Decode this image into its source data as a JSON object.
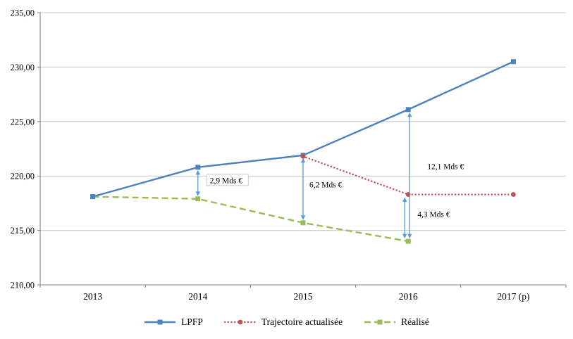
{
  "chart_data": {
    "type": "line",
    "title": "",
    "xlabel": "",
    "ylabel": "",
    "categories": [
      "2013",
      "2014",
      "2015",
      "2016",
      "2017 (p)"
    ],
    "ylim": [
      210,
      235
    ],
    "grid": true,
    "legend_position": "bottom",
    "yticks": [
      {
        "value": 210,
        "label": "210,00"
      },
      {
        "value": 215,
        "label": "215,00"
      },
      {
        "value": 220,
        "label": "220,00"
      },
      {
        "value": 225,
        "label": "225,00"
      },
      {
        "value": 230,
        "label": "230,00"
      },
      {
        "value": 235,
        "label": "235,00"
      }
    ],
    "series": [
      {
        "name": "LPFP",
        "color": "#4f81bd",
        "marker": "square",
        "dash": null,
        "linecap": null,
        "width": 2.4,
        "values": [
          218.1,
          220.8,
          221.9,
          226.1,
          230.5
        ]
      },
      {
        "name": "Trajectoire actualisée",
        "color": "#c0504d",
        "marker": "circle",
        "dash": "0.1 4.6",
        "linecap": "round",
        "width": 2.4,
        "values": [
          null,
          null,
          221.8,
          218.3,
          218.3
        ]
      },
      {
        "name": "Réalisé",
        "color": "#9bbb59",
        "marker": "square",
        "dash": "9 5",
        "linecap": null,
        "width": 2.4,
        "values": [
          218.1,
          217.9,
          215.7,
          214.0,
          null
        ]
      }
    ],
    "draw_order": [
      2,
      0,
      1
    ],
    "annotations": [
      {
        "x": "2014",
        "from": 220.8,
        "to": 217.9,
        "label": "2,9 Mds €",
        "label_value": 219.6,
        "label_dx": 17,
        "offset": 0,
        "boxed": true
      },
      {
        "x": "2015",
        "from": 221.9,
        "to": 215.7,
        "label": "6,2 Mds €",
        "label_value": 219.2,
        "label_dx": 9,
        "offset": 0,
        "boxed": false
      },
      {
        "x": "2016",
        "from": 226.1,
        "to": 214.0,
        "label": "12,1 Mds €",
        "label_value": 220.9,
        "label_dx": 27,
        "offset": 2,
        "boxed": false
      },
      {
        "x": "2016",
        "from": 218.3,
        "to": 214.0,
        "label": "4,3 Mds €",
        "label_value": 216.5,
        "label_dx": 13,
        "offset": -5,
        "boxed": false
      }
    ],
    "colors": {
      "grid": "#c8c8c8",
      "axis": "#7f7f7f",
      "arrow": "#5b9bd5",
      "text": "#000000"
    }
  }
}
